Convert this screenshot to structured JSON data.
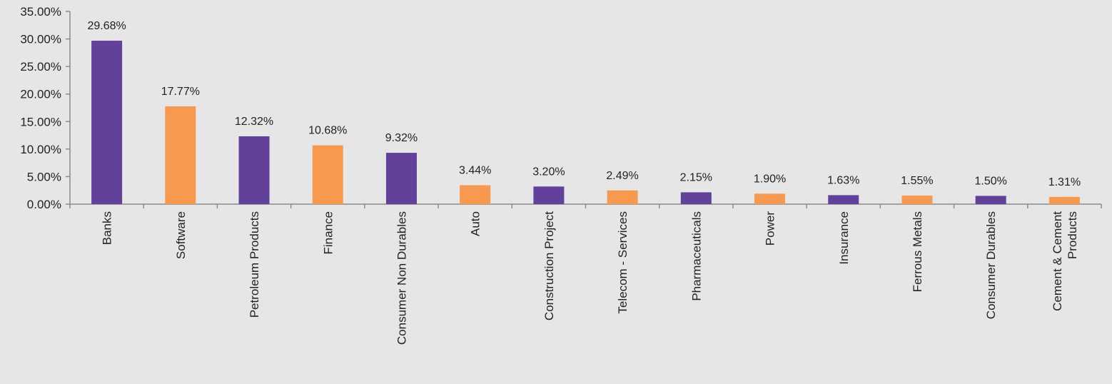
{
  "chart_data": {
    "type": "bar",
    "categories": [
      [
        "Banks"
      ],
      [
        "Software"
      ],
      [
        "Petroleum Products"
      ],
      [
        "Finance"
      ],
      [
        "Consumer Non Durables"
      ],
      [
        "Auto"
      ],
      [
        "Construction Project"
      ],
      [
        "Telecom - Services"
      ],
      [
        "Pharmaceuticals"
      ],
      [
        "Power"
      ],
      [
        "Insurance"
      ],
      [
        "Ferrous Metals"
      ],
      [
        "Consumer Durables"
      ],
      [
        "Cement & Cement",
        "Products"
      ]
    ],
    "values": [
      29.68,
      17.77,
      12.32,
      10.68,
      9.32,
      3.44,
      3.2,
      2.49,
      2.15,
      1.9,
      1.63,
      1.55,
      1.5,
      1.31
    ],
    "value_labels": [
      "29.68%",
      "17.77%",
      "12.32%",
      "10.68%",
      "9.32%",
      "3.44%",
      "3.20%",
      "2.49%",
      "2.15%",
      "1.90%",
      "1.63%",
      "1.55%",
      "1.50%",
      "1.31%"
    ],
    "y_ticks": [
      "0.00%",
      "5.00%",
      "10.00%",
      "15.00%",
      "20.00%",
      "25.00%",
      "30.00%",
      "35.00%"
    ],
    "ylim": [
      0,
      35
    ],
    "title": "",
    "xlabel": "",
    "ylabel": "",
    "grid": false,
    "colors": {
      "odd": "#61419a",
      "even": "#f7994f",
      "axis": "#8c8c8c",
      "background": "#e6e6e7"
    }
  }
}
